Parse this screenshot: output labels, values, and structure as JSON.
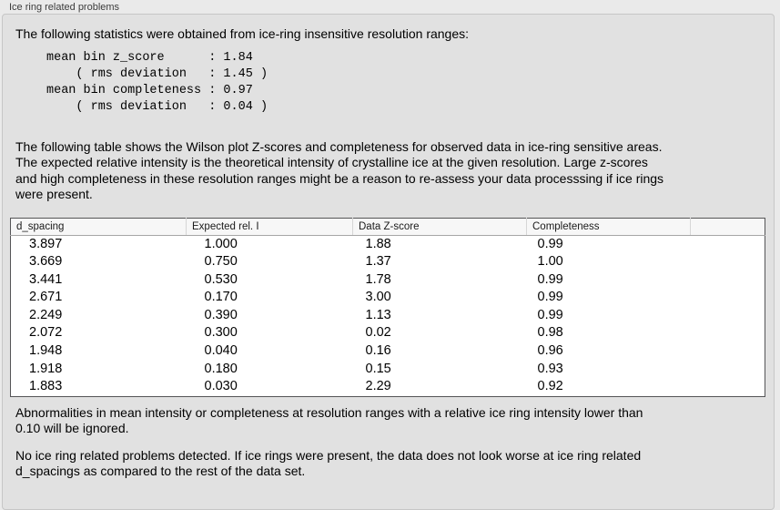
{
  "panel": {
    "title": "Ice ring related problems"
  },
  "statistics": {
    "intro": "The following statistics were obtained from ice-ring insensitive resolution ranges:",
    "values_block": "mean bin z_score      : 1.84\n    ( rms deviation   : 1.45 )\nmean bin completeness : 0.97\n    ( rms deviation   : 0.04 )",
    "mean_bin_z_score": "1.84",
    "z_score_rms_deviation": "1.45",
    "mean_bin_completeness": "0.97",
    "completeness_rms_deviation": "0.04"
  },
  "table_section": {
    "intro": "The following table shows the Wilson plot Z-scores and completeness for observed data in ice-ring sensitive areas.\nThe expected relative intensity is the theoretical intensity of crystalline ice at the given resolution. Large z-scores\nand high completeness in these resolution ranges might be a reason to re-assess your data processsing if ice rings\nwere present."
  },
  "table": {
    "headers": [
      "d_spacing",
      "Expected rel. I",
      "Data Z-score",
      "Completeness",
      ""
    ],
    "rows": [
      [
        "3.897",
        "1.000",
        "1.88",
        "0.99"
      ],
      [
        "3.669",
        "0.750",
        "1.37",
        "1.00"
      ],
      [
        "3.441",
        "0.530",
        "1.78",
        "0.99"
      ],
      [
        "2.671",
        "0.170",
        "3.00",
        "0.99"
      ],
      [
        "2.249",
        "0.390",
        "1.13",
        "0.99"
      ],
      [
        "2.072",
        "0.300",
        "0.02",
        "0.98"
      ],
      [
        "1.948",
        "0.040",
        "0.16",
        "0.96"
      ],
      [
        "1.918",
        "0.180",
        "0.15",
        "0.93"
      ],
      [
        "1.883",
        "0.030",
        "2.29",
        "0.92"
      ]
    ]
  },
  "notes": {
    "ignore_threshold": "Abnormalities in mean intensity or completeness at resolution ranges with a relative ice ring intensity lower than\n0.10 will be ignored.",
    "conclusion": "No ice ring related problems detected. If ice rings were present, the data does not look worse at ice ring related\nd_spacings as compared to the rest of the data set."
  }
}
